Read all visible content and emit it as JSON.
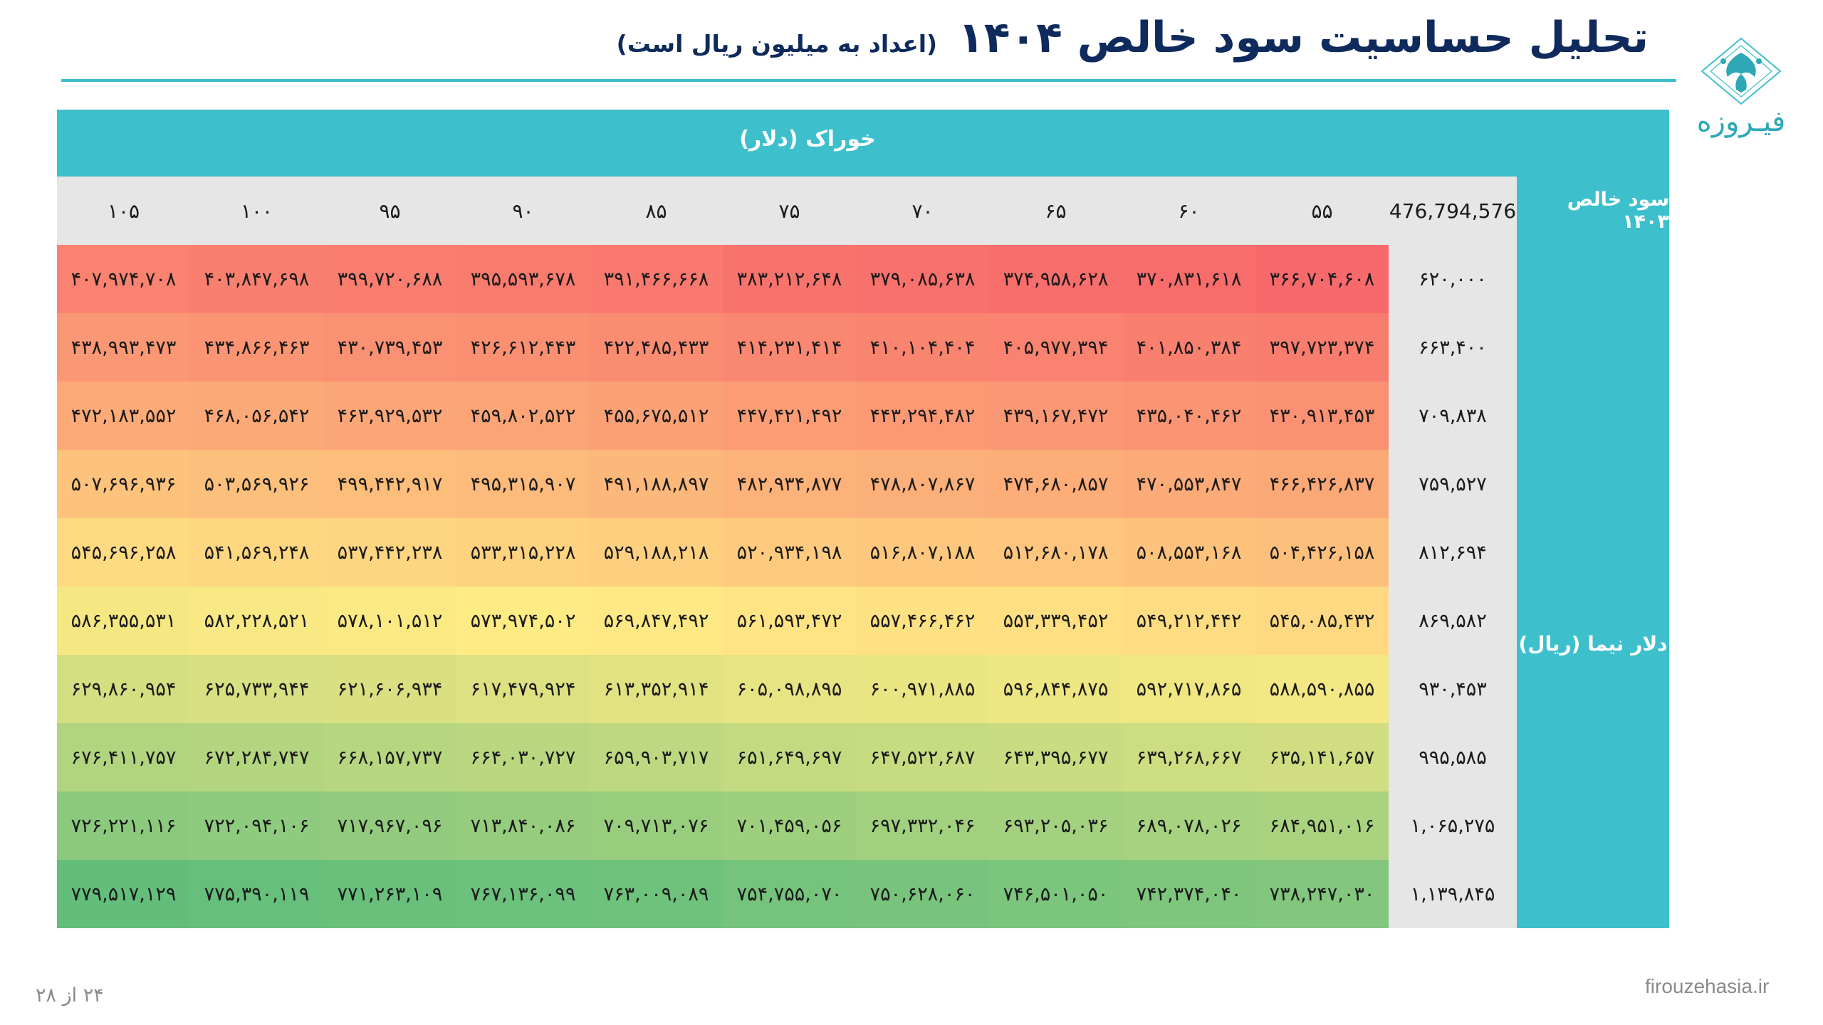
{
  "title": {
    "main": "تحلیل حساسیت سود خالص ۱۴۰۴",
    "subtitle": "(اعداد به میلیون ریال است)"
  },
  "brand": {
    "logo_text": "فیـروزه",
    "logo_icon": "firouzeh-flower-logo-icon",
    "url": "firouzehasia.ir",
    "accent_color": "#3dbfcc",
    "title_color": "#0f2a5c"
  },
  "table": {
    "column_axis_label": "خوراک (دلار)",
    "row_axis_top_label": "سود خالص ۱۴۰۳",
    "row_axis_label": "دلار نیما (ریال)",
    "base_value": "476,794,576",
    "columns": [
      "۵۵",
      "۶۰",
      "۶۵",
      "۷۰",
      "۷۵",
      "۸۵",
      "۹۰",
      "۹۵",
      "۱۰۰",
      "۱۰۵"
    ],
    "rows": [
      {
        "dollar": "۶۲۰,۰۰۰",
        "values": [
          "۳۶۶,۷۰۴,۶۰۸",
          "۳۷۰,۸۳۱,۶۱۸",
          "۳۷۴,۹۵۸,۶۲۸",
          "۳۷۹,۰۸۵,۶۳۸",
          "۳۸۳,۲۱۲,۶۴۸",
          "۳۹۱,۴۶۶,۶۶۸",
          "۳۹۵,۵۹۳,۶۷۸",
          "۳۹۹,۷۲۰,۶۸۸",
          "۴۰۳,۸۴۷,۶۹۸",
          "۴۰۷,۹۷۴,۷۰۸"
        ]
      },
      {
        "dollar": "۶۶۳,۴۰۰",
        "values": [
          "۳۹۷,۷۲۳,۳۷۴",
          "۴۰۱,۸۵۰,۳۸۴",
          "۴۰۵,۹۷۷,۳۹۴",
          "۴۱۰,۱۰۴,۴۰۴",
          "۴۱۴,۲۳۱,۴۱۴",
          "۴۲۲,۴۸۵,۴۳۳",
          "۴۲۶,۶۱۲,۴۴۳",
          "۴۳۰,۷۳۹,۴۵۳",
          "۴۳۴,۸۶۶,۴۶۳",
          "۴۳۸,۹۹۳,۴۷۳"
        ]
      },
      {
        "dollar": "۷۰۹,۸۳۸",
        "values": [
          "۴۳۰,۹۱۳,۴۵۳",
          "۴۳۵,۰۴۰,۴۶۲",
          "۴۳۹,۱۶۷,۴۷۲",
          "۴۴۳,۲۹۴,۴۸۲",
          "۴۴۷,۴۲۱,۴۹۲",
          "۴۵۵,۶۷۵,۵۱۲",
          "۴۵۹,۸۰۲,۵۲۲",
          "۴۶۳,۹۲۹,۵۳۲",
          "۴۶۸,۰۵۶,۵۴۲",
          "۴۷۲,۱۸۳,۵۵۲"
        ]
      },
      {
        "dollar": "۷۵۹,۵۲۷",
        "values": [
          "۴۶۶,۴۲۶,۸۳۷",
          "۴۷۰,۵۵۳,۸۴۷",
          "۴۷۴,۶۸۰,۸۵۷",
          "۴۷۸,۸۰۷,۸۶۷",
          "۴۸۲,۹۳۴,۸۷۷",
          "۴۹۱,۱۸۸,۸۹۷",
          "۴۹۵,۳۱۵,۹۰۷",
          "۴۹۹,۴۴۲,۹۱۷",
          "۵۰۳,۵۶۹,۹۲۶",
          "۵۰۷,۶۹۶,۹۳۶"
        ]
      },
      {
        "dollar": "۸۱۲,۶۹۴",
        "values": [
          "۵۰۴,۴۲۶,۱۵۸",
          "۵۰۸,۵۵۳,۱۶۸",
          "۵۱۲,۶۸۰,۱۷۸",
          "۵۱۶,۸۰۷,۱۸۸",
          "۵۲۰,۹۳۴,۱۹۸",
          "۵۲۹,۱۸۸,۲۱۸",
          "۵۳۳,۳۱۵,۲۲۸",
          "۵۳۷,۴۴۲,۲۳۸",
          "۵۴۱,۵۶۹,۲۴۸",
          "۵۴۵,۶۹۶,۲۵۸"
        ]
      },
      {
        "dollar": "۸۶۹,۵۸۲",
        "values": [
          "۵۴۵,۰۸۵,۴۳۲",
          "۵۴۹,۲۱۲,۴۴۲",
          "۵۵۳,۳۳۹,۴۵۲",
          "۵۵۷,۴۶۶,۴۶۲",
          "۵۶۱,۵۹۳,۴۷۲",
          "۵۶۹,۸۴۷,۴۹۲",
          "۵۷۳,۹۷۴,۵۰۲",
          "۵۷۸,۱۰۱,۵۱۲",
          "۵۸۲,۲۲۸,۵۲۱",
          "۵۸۶,۳۵۵,۵۳۱"
        ]
      },
      {
        "dollar": "۹۳۰,۴۵۳",
        "values": [
          "۵۸۸,۵۹۰,۸۵۵",
          "۵۹۲,۷۱۷,۸۶۵",
          "۵۹۶,۸۴۴,۸۷۵",
          "۶۰۰,۹۷۱,۸۸۵",
          "۶۰۵,۰۹۸,۸۹۵",
          "۶۱۳,۳۵۲,۹۱۴",
          "۶۱۷,۴۷۹,۹۲۴",
          "۶۲۱,۶۰۶,۹۳۴",
          "۶۲۵,۷۳۳,۹۴۴",
          "۶۲۹,۸۶۰,۹۵۴"
        ]
      },
      {
        "dollar": "۹۹۵,۵۸۵",
        "values": [
          "۶۳۵,۱۴۱,۶۵۷",
          "۶۳۹,۲۶۸,۶۶۷",
          "۶۴۳,۳۹۵,۶۷۷",
          "۶۴۷,۵۲۲,۶۸۷",
          "۶۵۱,۶۴۹,۶۹۷",
          "۶۵۹,۹۰۳,۷۱۷",
          "۶۶۴,۰۳۰,۷۲۷",
          "۶۶۸,۱۵۷,۷۳۷",
          "۶۷۲,۲۸۴,۷۴۷",
          "۶۷۶,۴۱۱,۷۵۷"
        ]
      },
      {
        "dollar": "۱,۰۶۵,۲۷۵",
        "values": [
          "۶۸۴,۹۵۱,۰۱۶",
          "۶۸۹,۰۷۸,۰۲۶",
          "۶۹۳,۲۰۵,۰۳۶",
          "۶۹۷,۳۳۲,۰۴۶",
          "۷۰۱,۴۵۹,۰۵۶",
          "۷۰۹,۷۱۳,۰۷۶",
          "۷۱۳,۸۴۰,۰۸۶",
          "۷۱۷,۹۶۷,۰۹۶",
          "۷۲۲,۰۹۴,۱۰۶",
          "۷۲۶,۲۲۱,۱۱۶"
        ]
      },
      {
        "dollar": "۱,۱۳۹,۸۴۵",
        "values": [
          "۷۳۸,۲۴۷,۰۳۰",
          "۷۴۲,۳۷۴,۰۴۰",
          "۷۴۶,۵۰۱,۰۵۰",
          "۷۵۰,۶۲۸,۰۶۰",
          "۷۵۴,۷۵۵,۰۷۰",
          "۷۶۳,۰۰۹,۰۸۹",
          "۷۶۷,۱۳۶,۰۹۹",
          "۷۷۱,۲۶۳,۱۰۹",
          "۷۷۵,۳۹۰,۱۱۹",
          "۷۷۹,۵۱۷,۱۲۹"
        ]
      }
    ],
    "heat_scale": {
      "low": "#f8696b",
      "mid": "#ffeb84",
      "high": "#63be7b"
    }
  },
  "footer": {
    "page_number": "۲۴ از ۲۸"
  }
}
